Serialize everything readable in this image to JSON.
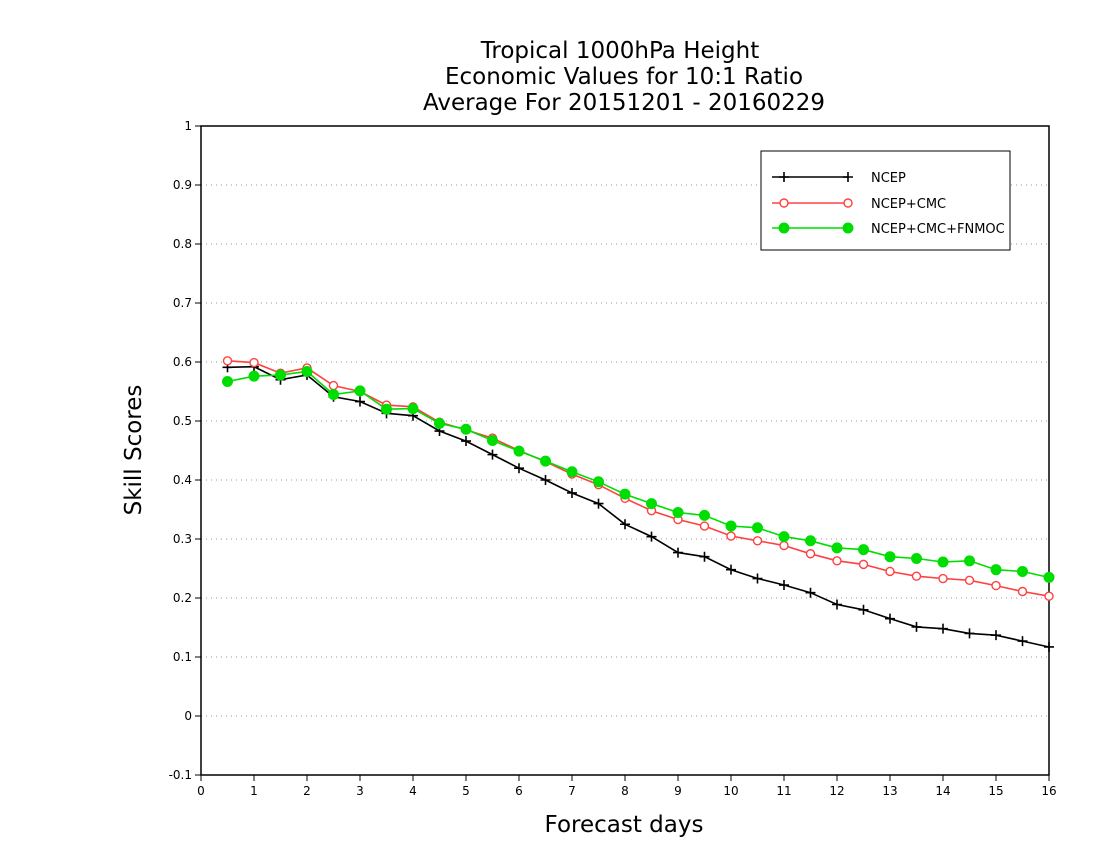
{
  "chart_data": {
    "type": "line",
    "title": [
      "Tropical 1000hPa Height",
      "Economic Values for 10:1 Ratio",
      "Average For 20151201 - 20160229"
    ],
    "xlabel": "Forecast days",
    "ylabel": "Skill Scores",
    "xlim": [
      0,
      16
    ],
    "ylim": [
      -0.1,
      1
    ],
    "xticks": [
      0,
      1,
      2,
      3,
      4,
      5,
      6,
      7,
      8,
      9,
      10,
      11,
      12,
      13,
      14,
      15,
      16
    ],
    "yticks": [
      -0.1,
      0,
      0.1,
      0.2,
      0.3,
      0.4,
      0.5,
      0.6,
      0.7,
      0.8,
      0.9,
      1
    ],
    "ytick_labels": [
      "-0.1",
      "0",
      "0.1",
      "0.2",
      "0.3",
      "0.4",
      "0.5",
      "0.6",
      "0.7",
      "0.8",
      "0.9",
      "1"
    ],
    "grid": "horizontal dotted",
    "legend_position": "top-right",
    "x": [
      0.5,
      1,
      1.5,
      2,
      2.5,
      3,
      3.5,
      4,
      4.5,
      5,
      5.5,
      6,
      6.5,
      7,
      7.5,
      8,
      8.5,
      9,
      9.5,
      10,
      10.5,
      11,
      11.5,
      12,
      12.5,
      13,
      13.5,
      14,
      14.5,
      15,
      15.5,
      16
    ],
    "series": [
      {
        "name": "NCEP",
        "color": "#000000",
        "marker": "plus",
        "values": [
          0.591,
          0.592,
          0.57,
          0.578,
          0.541,
          0.533,
          0.513,
          0.509,
          0.483,
          0.466,
          0.443,
          0.42,
          0.4,
          0.378,
          0.36,
          0.325,
          0.304,
          0.277,
          0.27,
          0.248,
          0.233,
          0.222,
          0.209,
          0.189,
          0.18,
          0.165,
          0.151,
          0.148,
          0.14,
          0.137,
          0.127,
          0.117
        ]
      },
      {
        "name": "NCEP+CMC",
        "color": "#ff4040",
        "marker": "open-circle",
        "values": [
          0.602,
          0.599,
          0.581,
          0.59,
          0.56,
          0.55,
          0.527,
          0.524,
          0.498,
          0.485,
          0.471,
          0.45,
          0.431,
          0.41,
          0.392,
          0.369,
          0.348,
          0.333,
          0.322,
          0.305,
          0.297,
          0.289,
          0.275,
          0.263,
          0.257,
          0.245,
          0.237,
          0.233,
          0.23,
          0.221,
          0.211,
          0.203
        ]
      },
      {
        "name": "NCEP+CMC+FNMOC",
        "color": "#00dd00",
        "marker": "filled-circle",
        "values": [
          0.567,
          0.576,
          0.578,
          0.584,
          0.545,
          0.551,
          0.52,
          0.521,
          0.496,
          0.486,
          0.467,
          0.449,
          0.432,
          0.414,
          0.397,
          0.376,
          0.36,
          0.345,
          0.34,
          0.322,
          0.319,
          0.304,
          0.297,
          0.285,
          0.282,
          0.27,
          0.267,
          0.261,
          0.263,
          0.248,
          0.245,
          0.235
        ]
      }
    ]
  }
}
